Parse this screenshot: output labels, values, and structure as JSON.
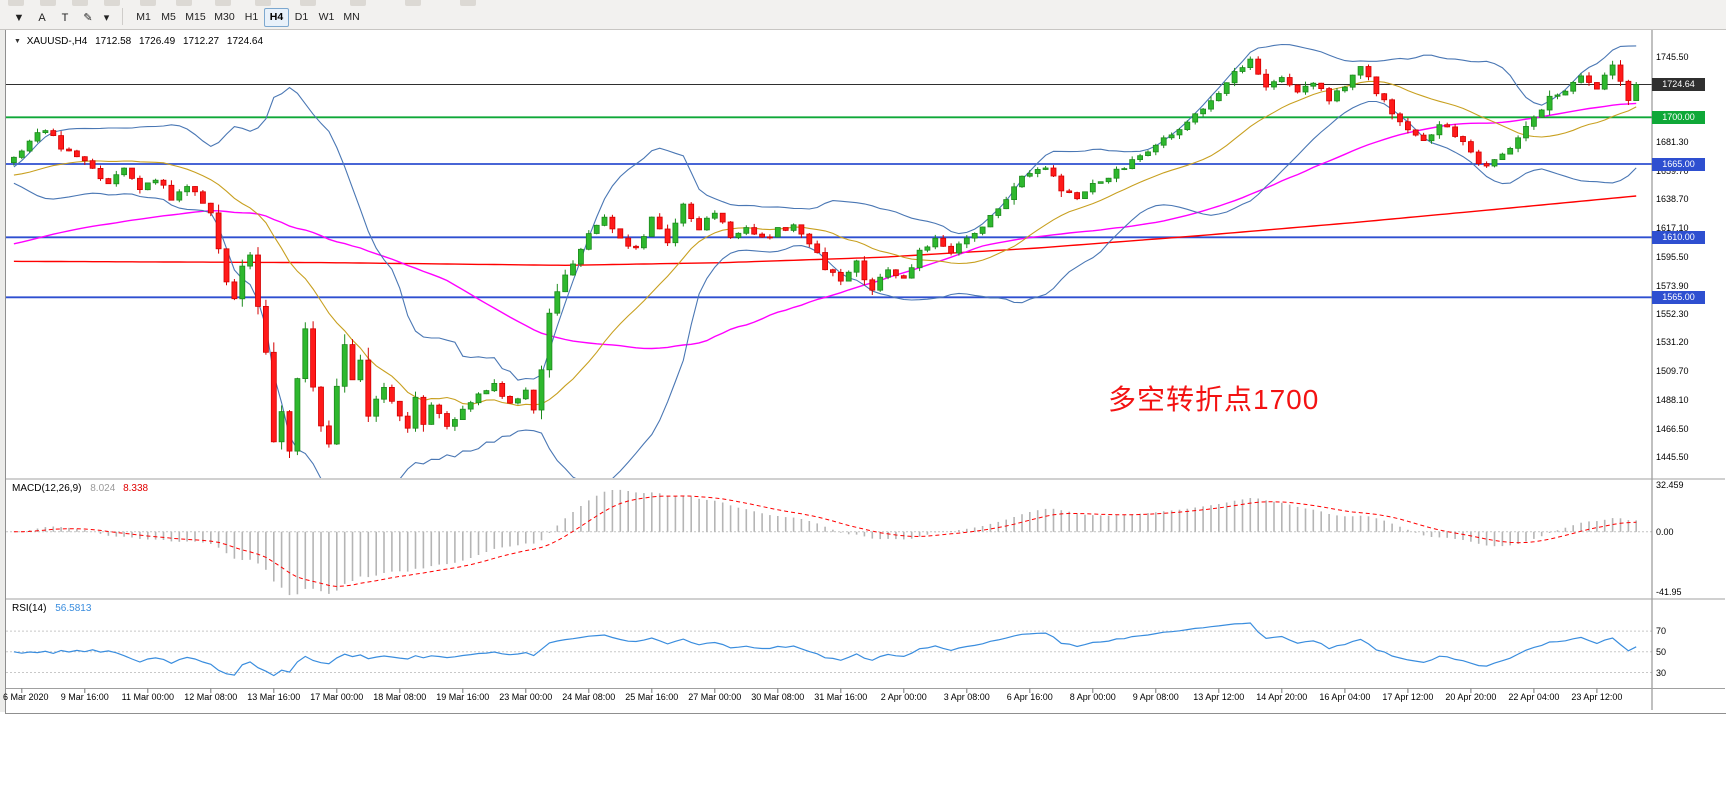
{
  "toolbar": {
    "tools": [
      {
        "name": "charts-dropdown",
        "glyph": "▼"
      },
      {
        "name": "text-tool",
        "glyph": "A"
      },
      {
        "name": "type-tool",
        "glyph": "T"
      },
      {
        "name": "draw-tool",
        "glyph": "✎"
      },
      {
        "name": "draw-tool-menu",
        "glyph": "▾"
      }
    ],
    "timeframes": [
      {
        "label": "M1",
        "active": false
      },
      {
        "label": "M5",
        "active": false
      },
      {
        "label": "M15",
        "active": false
      },
      {
        "label": "M30",
        "active": false
      },
      {
        "label": "H1",
        "active": false
      },
      {
        "label": "H4",
        "active": true
      },
      {
        "label": "D1",
        "active": false
      },
      {
        "label": "W1",
        "active": false
      },
      {
        "label": "MN",
        "active": false
      }
    ]
  },
  "main_chart": {
    "menu_icon": "▼",
    "symbol_period": "XAUUSD-,H4",
    "open": "1712.58",
    "high": "1726.49",
    "low": "1712.27",
    "close": "1724.64",
    "annotation": {
      "text": "多空转折点1700",
      "color": "#f31212"
    }
  },
  "macd_panel": {
    "label": "MACD(12,26,9)",
    "main_value": "8.024",
    "signal_value": "8.338"
  },
  "rsi_panel": {
    "label": "RSI(14)",
    "value": "56.5813"
  },
  "chart_data": {
    "type": "candlestick",
    "symbol": "XAUUSD-",
    "timeframe": "H4",
    "current_ohlc": {
      "open": 1712.58,
      "high": 1726.49,
      "low": 1712.27,
      "close": 1724.64
    },
    "price_axis_labels": [
      1745.5,
      1681.3,
      1659.7,
      1638.7,
      1617.1,
      1595.5,
      1573.9,
      1552.3,
      1531.2,
      1509.7,
      1488.1,
      1466.5,
      1445.5
    ],
    "horizontal_lines": [
      {
        "price": 1724.64,
        "label": "1724.64",
        "color": "#2f2f2f",
        "kind": "bid"
      },
      {
        "price": 1700.0,
        "label": "1700.00",
        "color": "#0fa838",
        "kind": "level"
      },
      {
        "price": 1665.0,
        "label": "1665.00",
        "color": "#2e4fd0",
        "kind": "level"
      },
      {
        "price": 1610.0,
        "label": "1610.00",
        "color": "#2e4fd0",
        "kind": "level"
      },
      {
        "price": 1565.0,
        "label": "1565.00",
        "color": "#2e4fd0",
        "kind": "level"
      }
    ],
    "x_labels": [
      "6 Mar 2020",
      "9 Mar 16:00",
      "11 Mar 00:00",
      "12 Mar 08:00",
      "13 Mar 16:00",
      "17 Mar 00:00",
      "18 Mar 08:00",
      "19 Mar 16:00",
      "23 Mar 00:00",
      "24 Mar 08:00",
      "25 Mar 16:00",
      "27 Mar 00:00",
      "30 Mar 08:00",
      "31 Mar 16:00",
      "2 Apr 00:00",
      "3 Apr 08:00",
      "6 Apr 16:00",
      "8 Apr 00:00",
      "9 Apr 08:00",
      "13 Apr 12:00",
      "14 Apr 20:00",
      "16 Apr 04:00",
      "17 Apr 12:00",
      "20 Apr 20:00",
      "22 Apr 04:00",
      "23 Apr 12:00"
    ],
    "bars_per_label": 8,
    "first_label_bar": 1,
    "close_anchors": [
      [
        0,
        1670
      ],
      [
        2,
        1684
      ],
      [
        4,
        1691
      ],
      [
        6,
        1678
      ],
      [
        8,
        1670
      ],
      [
        10,
        1660
      ],
      [
        12,
        1652
      ],
      [
        14,
        1662
      ],
      [
        16,
        1645
      ],
      [
        18,
        1655
      ],
      [
        20,
        1640
      ],
      [
        22,
        1650
      ],
      [
        24,
        1638
      ],
      [
        25,
        1630
      ],
      [
        26,
        1603
      ],
      [
        27,
        1575
      ],
      [
        28,
        1562
      ],
      [
        29,
        1590
      ],
      [
        30,
        1598
      ],
      [
        31,
        1560
      ],
      [
        32,
        1525
      ],
      [
        33,
        1456
      ],
      [
        34,
        1478
      ],
      [
        35,
        1452
      ],
      [
        36,
        1505
      ],
      [
        37,
        1540
      ],
      [
        38,
        1498
      ],
      [
        39,
        1470
      ],
      [
        40,
        1456
      ],
      [
        41,
        1498
      ],
      [
        42,
        1532
      ],
      [
        43,
        1505
      ],
      [
        44,
        1518
      ],
      [
        45,
        1478
      ],
      [
        47,
        1496
      ],
      [
        49,
        1478
      ],
      [
        50,
        1466
      ],
      [
        51,
        1490
      ],
      [
        52,
        1468
      ],
      [
        53,
        1482
      ],
      [
        55,
        1470
      ],
      [
        57,
        1480
      ],
      [
        59,
        1492
      ],
      [
        61,
        1500
      ],
      [
        63,
        1486
      ],
      [
        65,
        1494
      ],
      [
        66,
        1481
      ],
      [
        67,
        1512
      ],
      [
        68,
        1552
      ],
      [
        69,
        1570
      ],
      [
        71,
        1592
      ],
      [
        73,
        1612
      ],
      [
        75,
        1626
      ],
      [
        77,
        1608
      ],
      [
        79,
        1600
      ],
      [
        81,
        1626
      ],
      [
        83,
        1608
      ],
      [
        85,
        1634
      ],
      [
        87,
        1618
      ],
      [
        89,
        1628
      ],
      [
        91,
        1610
      ],
      [
        93,
        1618
      ],
      [
        95,
        1608
      ],
      [
        97,
        1615
      ],
      [
        99,
        1620
      ],
      [
        101,
        1605
      ],
      [
        103,
        1588
      ],
      [
        105,
        1578
      ],
      [
        107,
        1590
      ],
      [
        109,
        1568
      ],
      [
        111,
        1588
      ],
      [
        113,
        1578
      ],
      [
        115,
        1598
      ],
      [
        117,
        1608
      ],
      [
        119,
        1596
      ],
      [
        121,
        1610
      ],
      [
        123,
        1618
      ],
      [
        125,
        1630
      ],
      [
        127,
        1650
      ],
      [
        129,
        1660
      ],
      [
        131,
        1664
      ],
      [
        133,
        1645
      ],
      [
        135,
        1638
      ],
      [
        137,
        1648
      ],
      [
        139,
        1656
      ],
      [
        141,
        1662
      ],
      [
        143,
        1670
      ],
      [
        145,
        1678
      ],
      [
        147,
        1688
      ],
      [
        149,
        1695
      ],
      [
        151,
        1708
      ],
      [
        153,
        1718
      ],
      [
        155,
        1732
      ],
      [
        157,
        1742
      ],
      [
        159,
        1724
      ],
      [
        161,
        1731
      ],
      [
        163,
        1718
      ],
      [
        165,
        1726
      ],
      [
        167,
        1714
      ],
      [
        169,
        1724
      ],
      [
        171,
        1737
      ],
      [
        173,
        1720
      ],
      [
        175,
        1702
      ],
      [
        177,
        1690
      ],
      [
        179,
        1682
      ],
      [
        181,
        1695
      ],
      [
        183,
        1686
      ],
      [
        185,
        1673
      ],
      [
        187,
        1662
      ],
      [
        189,
        1674
      ],
      [
        191,
        1684
      ],
      [
        193,
        1702
      ],
      [
        195,
        1714
      ],
      [
        197,
        1722
      ],
      [
        199,
        1732
      ],
      [
        201,
        1723
      ],
      [
        203,
        1737
      ],
      [
        204,
        1726
      ],
      [
        205,
        1712.6
      ],
      [
        206,
        1724.64
      ]
    ],
    "indicators": {
      "bollinger": {
        "period": 20,
        "deviation": 2,
        "color": "#4a77b4"
      },
      "ma_mid": {
        "period": 20,
        "color": "#c8a020"
      },
      "ma_slow": {
        "period": 56,
        "color": "#ff00ff"
      },
      "ma_long": {
        "color": "#ff0000",
        "anchors": [
          [
            0,
            1592
          ],
          [
            40,
            1591
          ],
          [
            70,
            1589
          ],
          [
            90,
            1591
          ],
          [
            110,
            1595
          ],
          [
            130,
            1602
          ],
          [
            150,
            1611
          ],
          [
            170,
            1621
          ],
          [
            190,
            1632
          ],
          [
            206,
            1641
          ]
        ]
      },
      "macd": {
        "params": [
          12,
          26,
          9
        ],
        "current_main": 8.024,
        "current_signal": 8.338,
        "axis": [
          {
            "text": "32.459",
            "value": 32.459
          },
          {
            "text": "0.00",
            "value": 0
          },
          {
            "text": "-41.95",
            "value": -41.95
          }
        ],
        "hist_color": "#b5b5b5",
        "signal_color": "#ff0000"
      },
      "rsi": {
        "period": 14,
        "current": 56.5813,
        "color": "#3a8dde",
        "levels": [
          {
            "text": "70",
            "value": 70
          },
          {
            "text": "50",
            "value": 50
          },
          {
            "text": "30",
            "value": 30
          }
        ]
      }
    },
    "candle_colors": {
      "bull_fill": "#2eb82e",
      "bull_stroke": "#1d8a1d",
      "bear_fill": "#ff1a1a",
      "bear_stroke": "#d40000"
    }
  }
}
